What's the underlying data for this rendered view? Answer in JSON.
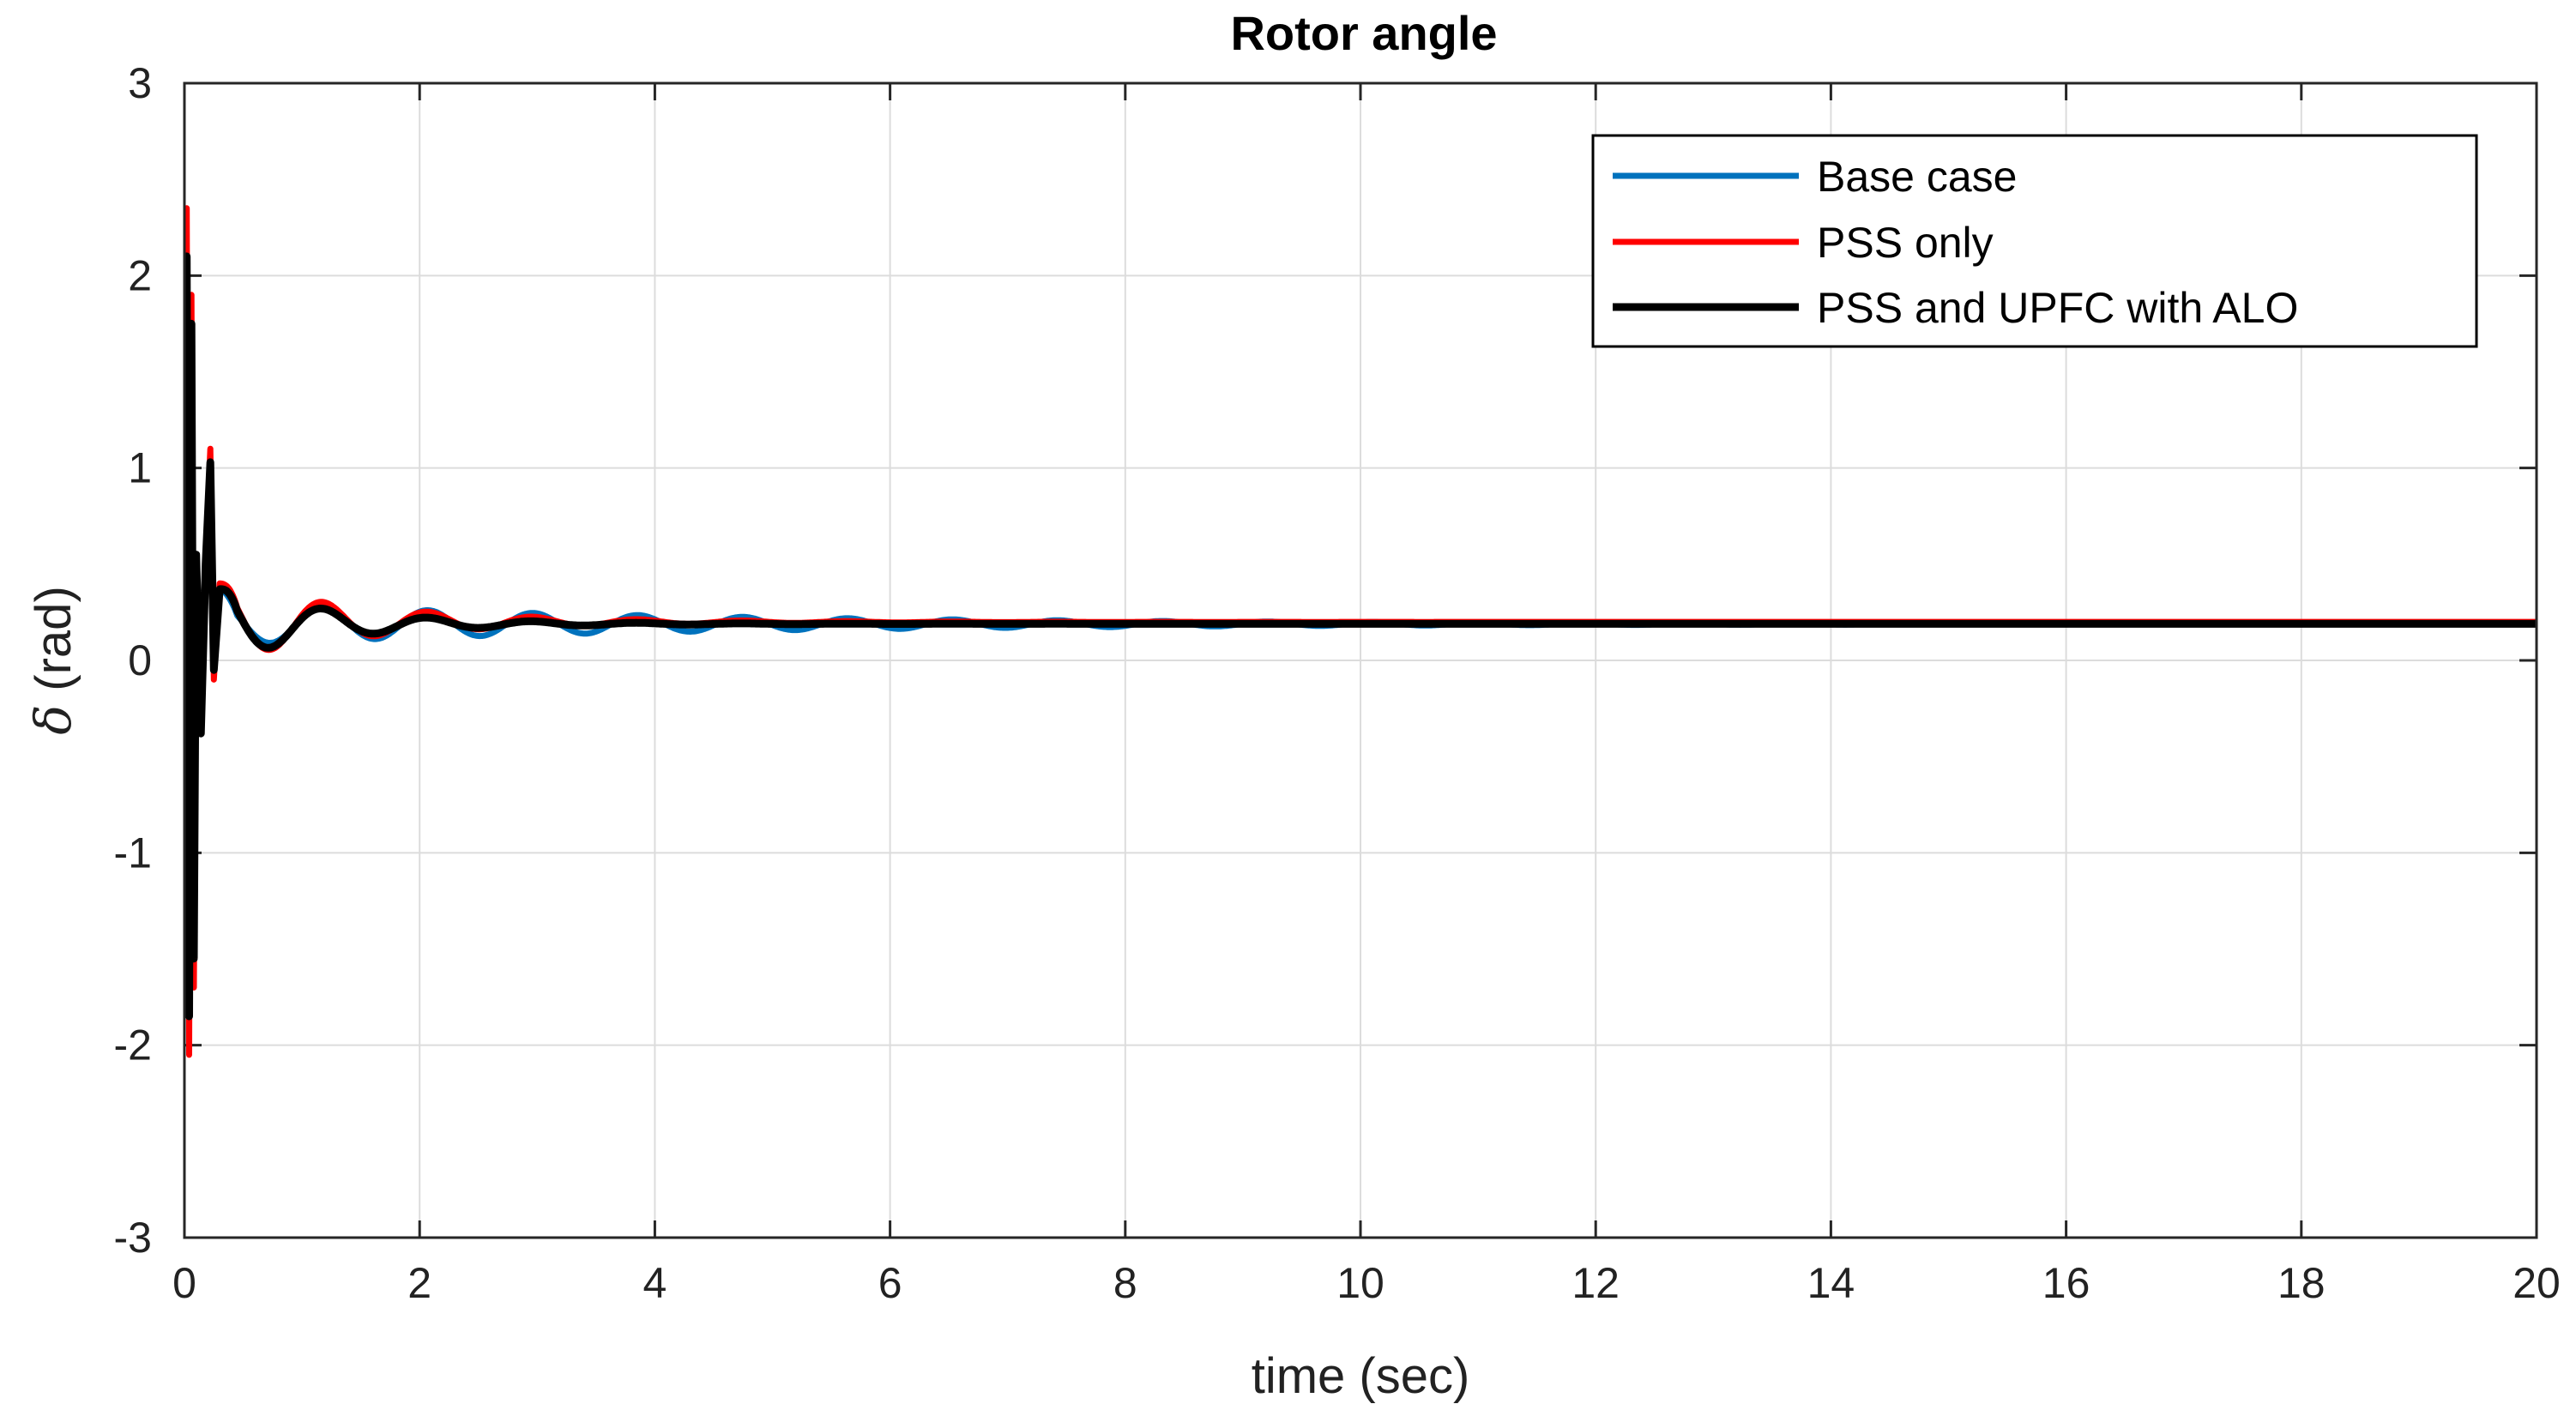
{
  "chart_data": {
    "type": "line",
    "title": "Rotor angle",
    "xlabel": "time (sec)",
    "ylabel_symbol": "δ",
    "ylabel_unit": "(rad)",
    "xlim": [
      0,
      20
    ],
    "ylim": [
      -3,
      3
    ],
    "xticks": [
      0,
      2,
      4,
      6,
      8,
      10,
      12,
      14,
      16,
      18,
      20
    ],
    "yticks": [
      -3,
      -2,
      -1,
      0,
      1,
      2,
      3
    ],
    "grid": true,
    "legend_position": "top-right",
    "series": [
      {
        "name": "Base case",
        "color": "#0072BD",
        "width": 7,
        "steady": 0.19,
        "amp": 0.11,
        "decay": 0.25,
        "freq": 1.12,
        "phase": 0.1,
        "spikes": [
          [
            0.0,
            0.2
          ],
          [
            0.02,
            1.9
          ],
          [
            0.04,
            -1.8
          ],
          [
            0.06,
            1.7
          ],
          [
            0.08,
            -1.6
          ],
          [
            0.1,
            0.5
          ],
          [
            0.14,
            -0.2
          ],
          [
            0.18,
            0.5
          ],
          [
            0.22,
            1.0
          ],
          [
            0.25,
            0.0
          ],
          [
            0.3,
            0.38
          ]
        ]
      },
      {
        "name": "PSS only",
        "color": "#FF0000",
        "width": 7,
        "steady": 0.2,
        "amp": 0.2,
        "decay": 0.75,
        "freq": 1.12,
        "phase": 0.1,
        "spikes": [
          [
            0.0,
            0.2
          ],
          [
            0.02,
            2.35
          ],
          [
            0.04,
            -2.05
          ],
          [
            0.06,
            1.9
          ],
          [
            0.08,
            -1.7
          ],
          [
            0.1,
            0.55
          ],
          [
            0.14,
            -0.25
          ],
          [
            0.18,
            0.55
          ],
          [
            0.22,
            1.1
          ],
          [
            0.25,
            -0.1
          ],
          [
            0.3,
            0.4
          ]
        ]
      },
      {
        "name": "PSS and UPFC with ALO",
        "color": "#000000",
        "width": 9,
        "steady": 0.19,
        "amp": 0.19,
        "decay": 1.0,
        "freq": 1.12,
        "phase": 0.1,
        "spikes": [
          [
            0.0,
            0.2
          ],
          [
            0.02,
            2.1
          ],
          [
            0.04,
            -1.85
          ],
          [
            0.06,
            1.75
          ],
          [
            0.08,
            -1.55
          ],
          [
            0.1,
            0.55
          ],
          [
            0.14,
            -0.38
          ],
          [
            0.18,
            0.5
          ],
          [
            0.22,
            1.03
          ],
          [
            0.25,
            -0.05
          ],
          [
            0.3,
            0.37
          ]
        ]
      }
    ]
  }
}
